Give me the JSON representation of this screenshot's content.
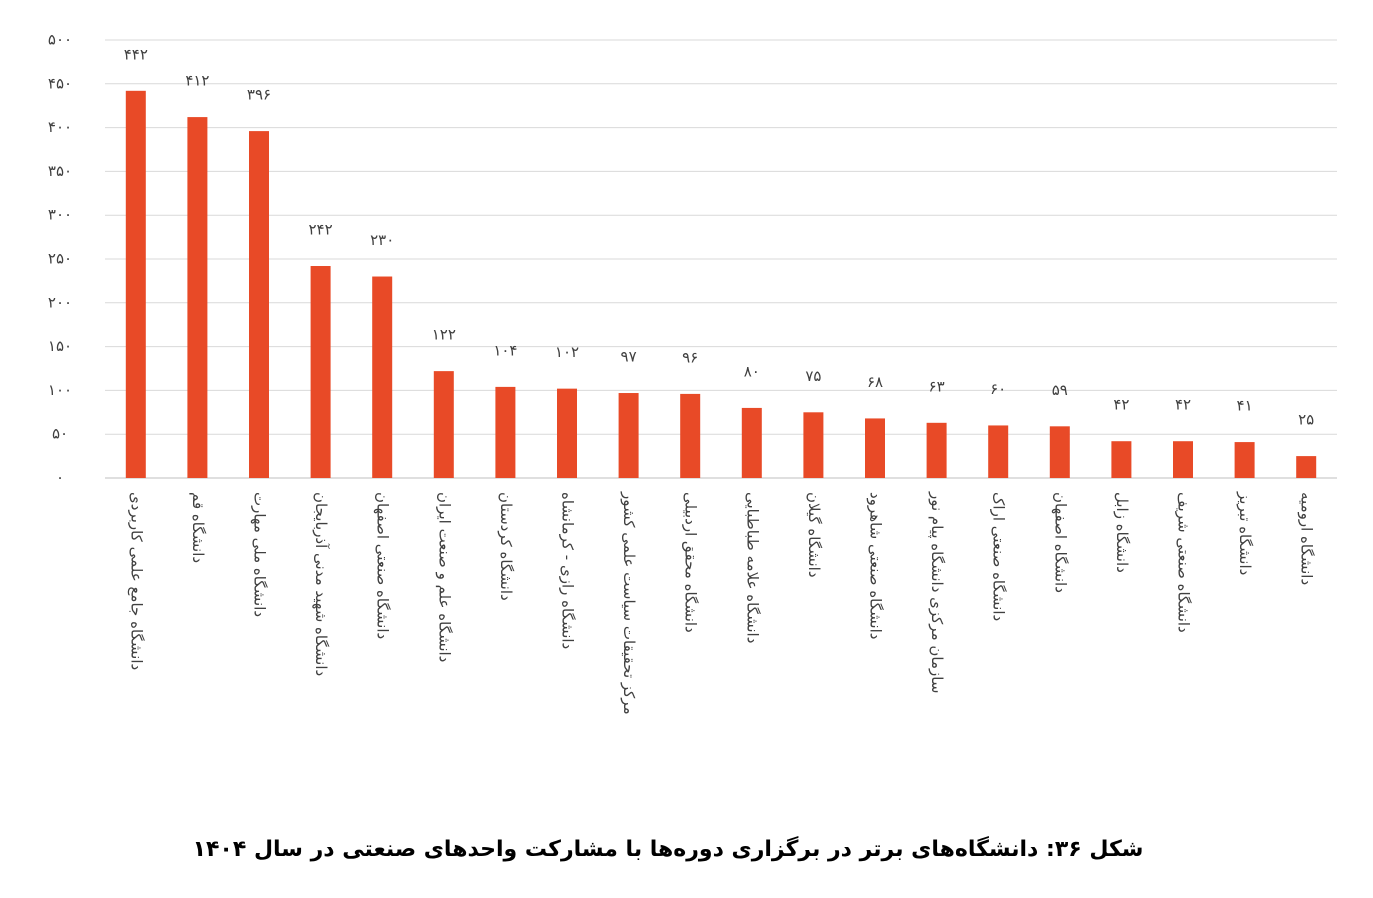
{
  "chart_data": {
    "type": "bar",
    "title": "شکل ۳۶: دانشگاه‌های برتر در برگزاری دوره‌ها با مشارکت واحدهای صنعتی در سال ۱۴۰۴",
    "categories": [
      "دانشگاه جامع علمی کاربردی",
      "دانشگاه قم",
      "دانشگاه ملی مهارت",
      "دانشگاه شهید مدنی آذربایجان",
      "دانشگاه صنعتی اصفهان",
      "دانشگاه علم و صنعت ایران",
      "دانشگاه کردستان",
      "دانشگاه رازی - کرمانشاه",
      "مرکز تحقیقات سیاست علمی کشور",
      "دانشگاه محقق اردبیلی",
      "دانشگاه علامه طباطبایی",
      "دانشگاه گیلان",
      "دانشگاه صنعتی شاهرود",
      "سازمان مرکزی دانشگاه پیام نور",
      "دانشگاه صنعتی اراک",
      "دانشگاه اصفهان",
      "دانشگاه زابل",
      "دانشگاه صنعتی شریف",
      "دانشگاه تبریز",
      "دانشگاه ارومیه"
    ],
    "values": [
      442,
      412,
      396,
      242,
      230,
      122,
      104,
      102,
      97,
      96,
      80,
      75,
      68,
      63,
      60,
      59,
      42,
      42,
      41,
      25
    ],
    "value_labels": [
      "۴۴۲",
      "۴۱۲",
      "۳۹۶",
      "۲۴۲",
      "۲۳۰",
      "۱۲۲",
      "۱۰۴",
      "۱۰۲",
      "۹۷",
      "۹۶",
      "۸۰",
      "۷۵",
      "۶۸",
      "۶۳",
      "۶۰",
      "۵۹",
      "۴۲",
      "۴۲",
      "۴۱",
      "۲۵"
    ],
    "color": "#e84a27",
    "ylim": [
      0,
      500
    ],
    "yticks": [
      {
        "value": 0,
        "label": "۰"
      },
      {
        "value": 50,
        "label": "۵۰"
      },
      {
        "value": 100,
        "label": "۱۰۰"
      },
      {
        "value": 150,
        "label": "۱۵۰"
      },
      {
        "value": 200,
        "label": "۲۰۰"
      },
      {
        "value": 250,
        "label": "۲۵۰"
      },
      {
        "value": 300,
        "label": "۳۰۰"
      },
      {
        "value": 350,
        "label": "۳۵۰"
      },
      {
        "value": 400,
        "label": "۴۰۰"
      },
      {
        "value": 450,
        "label": "۴۵۰"
      },
      {
        "value": 500,
        "label": "۵۰۰"
      }
    ],
    "grid": true
  }
}
